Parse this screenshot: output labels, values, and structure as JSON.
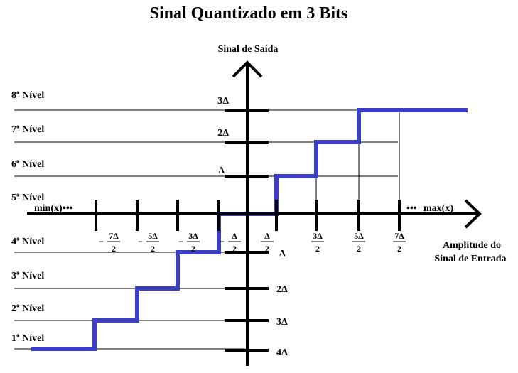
{
  "title": "Sinal Quantizado em 3 Bits",
  "y_axis_label": "Sinal de Saída",
  "x_axis_label_line1": "Amplitude do",
  "x_axis_label_line2": "Sinal de Entrada",
  "min_label": "min(x)",
  "max_label": "max(x)",
  "levels": [
    "1º Nível",
    "2º Nível",
    "3º Nível",
    "4º Nível",
    "5º Nível",
    "6º Nível",
    "7º Nível",
    "8º Nível"
  ],
  "output_labels_pos": [
    "Δ",
    "2Δ",
    "3Δ"
  ],
  "output_labels_neg": [
    "Δ",
    "2Δ",
    "3Δ",
    "4Δ"
  ],
  "x_tick_numerators": [
    "7Δ",
    "5Δ",
    "3Δ",
    "Δ",
    "Δ",
    "3Δ",
    "5Δ",
    "7Δ"
  ],
  "x_tick_denominator": "2",
  "x_tick_sign": "−",
  "ellipsis": "•••",
  "colors": {
    "staircase": "#3a3fc4",
    "axis": "#000000"
  },
  "chart_data": {
    "type": "line",
    "title": "Sinal Quantizado em 3 Bits",
    "xlabel": "Amplitude do Sinal de Entrada",
    "ylabel": "Sinal de Saída",
    "x_ticks": [
      "-7Δ/2",
      "-5Δ/2",
      "-3Δ/2",
      "-Δ/2",
      "Δ/2",
      "3Δ/2",
      "5Δ/2",
      "7Δ/2"
    ],
    "series": [
      {
        "x_breakpoints_in_delta": [
          -3.5,
          -2.5,
          -1.5,
          -0.5,
          0.5,
          1.5,
          2.5
        ],
        "output_levels_in_delta": [
          -4,
          -3,
          -2,
          -1,
          0,
          1,
          2,
          3
        ]
      }
    ]
  }
}
